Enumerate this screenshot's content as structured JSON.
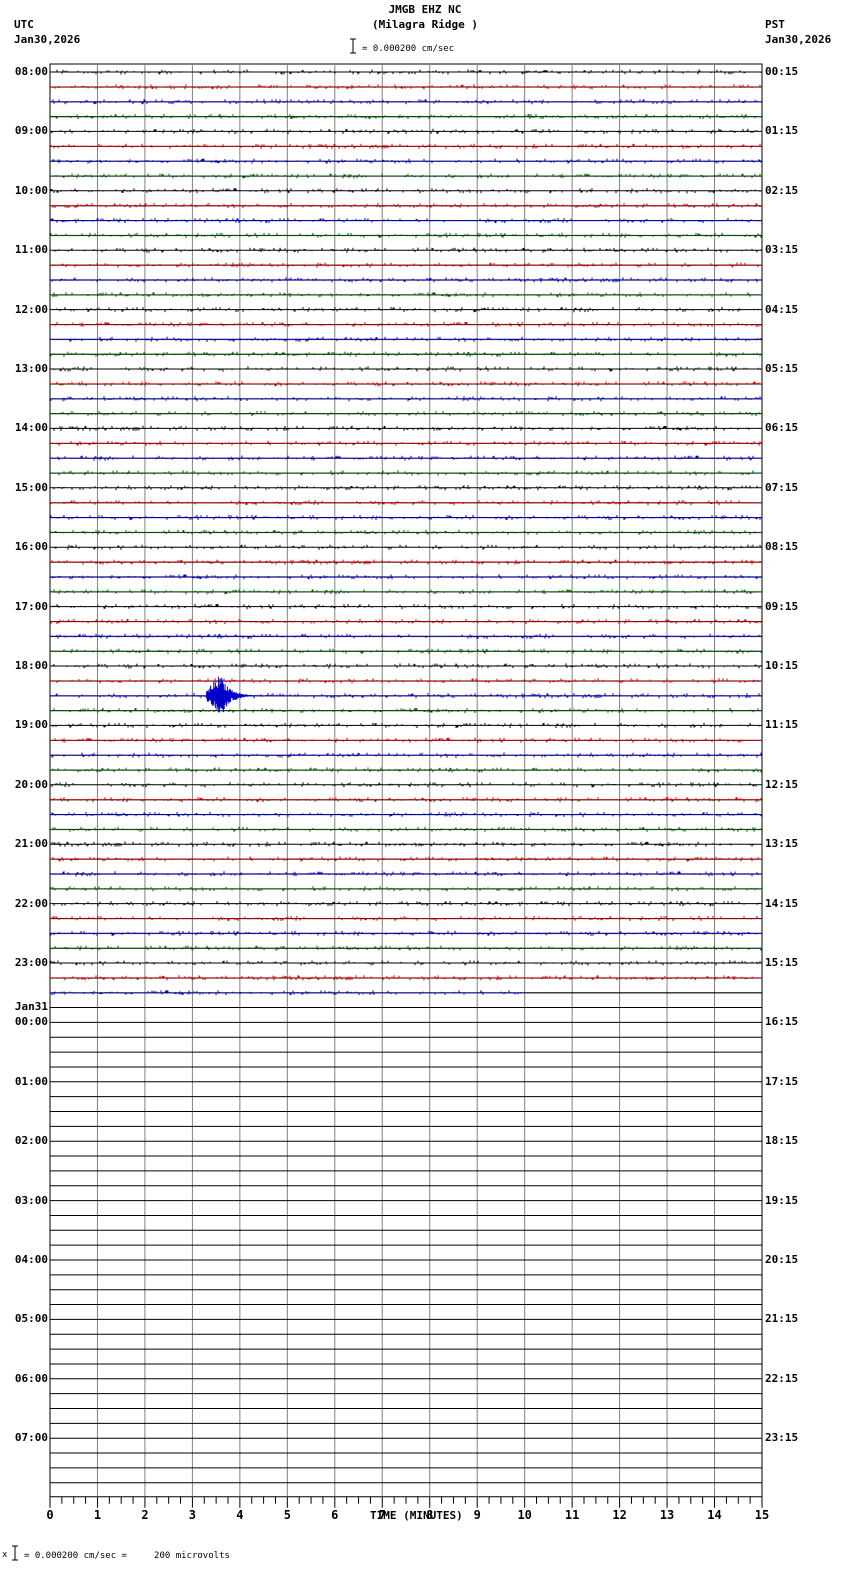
{
  "header": {
    "station": "JMGB EHZ NC",
    "location": "(Milagra Ridge )",
    "left_zone": "UTC",
    "left_date": "Jan30,2026",
    "right_zone": "PST",
    "right_date": "Jan30,2026",
    "scale_text": "= 0.000200 cm/sec"
  },
  "footer": {
    "scale_text": "= 0.000200 cm/sec =     200 microvolts",
    "marker": "x"
  },
  "colors": {
    "trace_cycle": [
      "#000000",
      "#d00000",
      "#0000c8",
      "#006000"
    ],
    "grid": "#808080",
    "baseline": "#000000"
  },
  "chart_data": {
    "type": "line",
    "title": "JMGB EHZ NC (Milagra Ridge )",
    "xlabel": "TIME (MINUTES)",
    "ylabel": "",
    "xlim": [
      0,
      15
    ],
    "x_ticks": [
      "0",
      "1",
      "2",
      "3",
      "4",
      "5",
      "6",
      "7",
      "8",
      "9",
      "10",
      "11",
      "12",
      "13",
      "14",
      "15"
    ],
    "traces_per_hour": 4,
    "total_traces": 96,
    "trace_minutes": 15,
    "data_end_trace_index": 62,
    "data_end_minute": 10,
    "utc_labels": [
      "08:00",
      "09:00",
      "10:00",
      "11:00",
      "12:00",
      "13:00",
      "14:00",
      "15:00",
      "16:00",
      "17:00",
      "18:00",
      "19:00",
      "20:00",
      "21:00",
      "22:00",
      "23:00",
      "00:00",
      "01:00",
      "02:00",
      "03:00",
      "04:00",
      "05:00",
      "06:00",
      "07:00"
    ],
    "utc_date_change": {
      "hour_index": 16,
      "label": "Jan31"
    },
    "pst_labels": [
      "00:15",
      "01:15",
      "02:15",
      "03:15",
      "04:15",
      "05:15",
      "06:15",
      "07:15",
      "08:15",
      "09:15",
      "10:15",
      "11:15",
      "12:15",
      "13:15",
      "14:15",
      "15:15",
      "16:15",
      "17:15",
      "18:15",
      "19:15",
      "20:15",
      "21:15",
      "22:15",
      "23:15"
    ],
    "events": [
      {
        "trace_index": 42,
        "utc": "18:30",
        "start_minute": 3.3,
        "peak_minute": 3.6,
        "end_minute": 4.8,
        "description": "local earthquake, large amplitude on blue trace"
      }
    ],
    "amplitude_scale": "0.000200 cm/sec = 200 microvolts"
  }
}
